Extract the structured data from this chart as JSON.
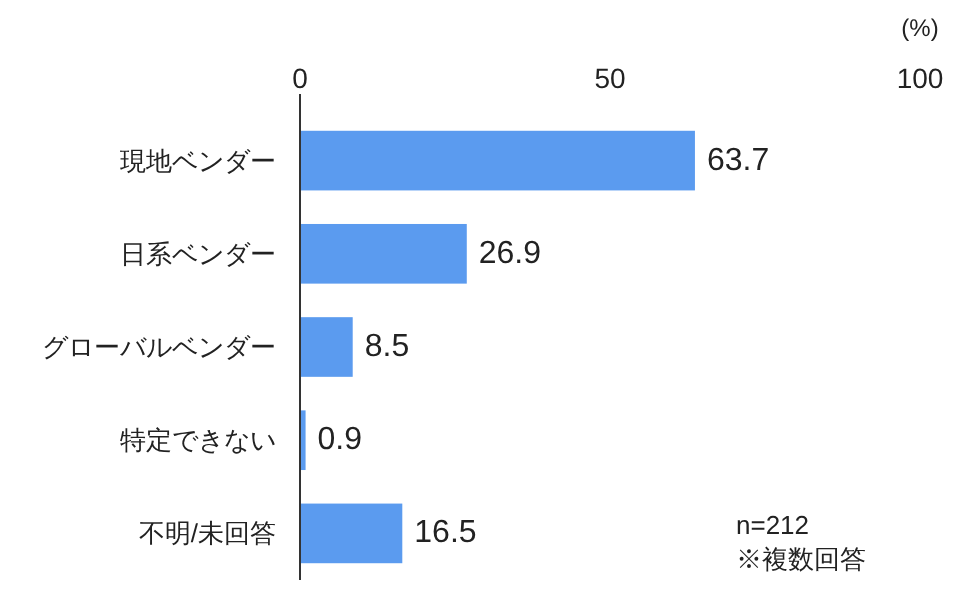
{
  "chart_data": {
    "type": "bar",
    "orientation": "horizontal",
    "categories": [
      "現地ベンダー",
      "日系ベンダー",
      "グローバルベンダー",
      "特定できない",
      "不明/未回答"
    ],
    "values": [
      63.7,
      26.9,
      8.5,
      0.9,
      16.5
    ],
    "color": "#5b9bef",
    "xlim": [
      0,
      100
    ],
    "xticks": [
      0,
      50,
      100
    ],
    "xlabel": "(%)",
    "data_labels": true,
    "grid": false,
    "annotations": [
      "n=212",
      "※複数回答"
    ]
  }
}
